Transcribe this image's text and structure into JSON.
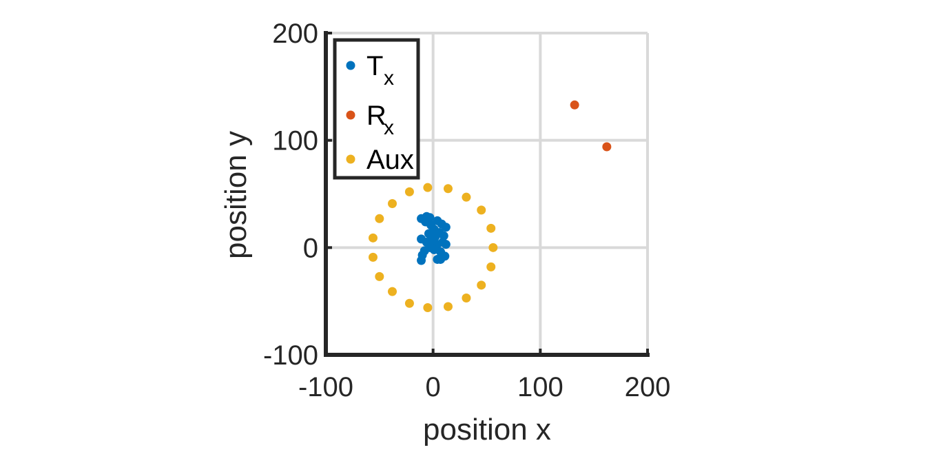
{
  "chart_data": {
    "type": "scatter",
    "title": "",
    "xlabel": "position x",
    "ylabel": "position y",
    "xlim": [
      -100,
      200
    ],
    "ylim": [
      -100,
      200
    ],
    "xticks": [
      -100,
      0,
      100,
      200
    ],
    "yticks": [
      -100,
      0,
      100,
      200
    ],
    "x_tick_labels": [
      "-100",
      "0",
      "100",
      "200"
    ],
    "y_tick_labels": [
      "-100",
      "0",
      "100",
      "200"
    ],
    "grid": true,
    "legend": {
      "placement": "top-left",
      "entries": [
        {
          "base": "T",
          "sub": "x",
          "color": "#0072BD"
        },
        {
          "base": "R",
          "sub": "x",
          "color": "#D95319"
        },
        {
          "base": "Aux",
          "sub": "",
          "color": "#EDB120"
        }
      ]
    },
    "series": [
      {
        "label": "Tx",
        "color": "#0072BD",
        "points": [
          [
            -11,
            27
          ],
          [
            -6,
            29
          ],
          [
            -3,
            28
          ],
          [
            -7,
            24
          ],
          [
            -2,
            21
          ],
          [
            4,
            25
          ],
          [
            8,
            22
          ],
          [
            12,
            19
          ],
          [
            1,
            17
          ],
          [
            6,
            14
          ],
          [
            -4,
            13
          ],
          [
            2,
            10
          ],
          [
            10,
            11
          ],
          [
            -11,
            8
          ],
          [
            -6,
            5
          ],
          [
            4,
            3
          ],
          [
            9,
            5
          ],
          [
            12,
            3
          ],
          [
            -3,
            0
          ],
          [
            1,
            -2
          ],
          [
            7,
            -4
          ],
          [
            -10,
            -7
          ],
          [
            11,
            -8
          ],
          [
            4,
            -11
          ],
          [
            -11,
            -12
          ],
          [
            7,
            -11
          ],
          [
            -1,
            7
          ],
          [
            -8,
            -3
          ]
        ]
      },
      {
        "label": "Rx",
        "color": "#D95319",
        "points": [
          [
            132,
            133
          ],
          [
            162,
            94
          ]
        ]
      },
      {
        "label": "Aux",
        "color": "#EDB120",
        "points": [
          [
            56,
            0
          ],
          [
            54,
            18
          ],
          [
            45,
            35
          ],
          [
            31,
            47
          ],
          [
            14,
            55
          ],
          [
            -5,
            56
          ],
          [
            -22,
            52
          ],
          [
            -38,
            41
          ],
          [
            -50,
            27
          ],
          [
            -56,
            9
          ],
          [
            -56,
            -9
          ],
          [
            -50,
            -27
          ],
          [
            -38,
            -41
          ],
          [
            -22,
            -52
          ],
          [
            -5,
            -56
          ],
          [
            14,
            -55
          ],
          [
            31,
            -47
          ],
          [
            45,
            -35
          ],
          [
            54,
            -18
          ]
        ]
      }
    ]
  }
}
